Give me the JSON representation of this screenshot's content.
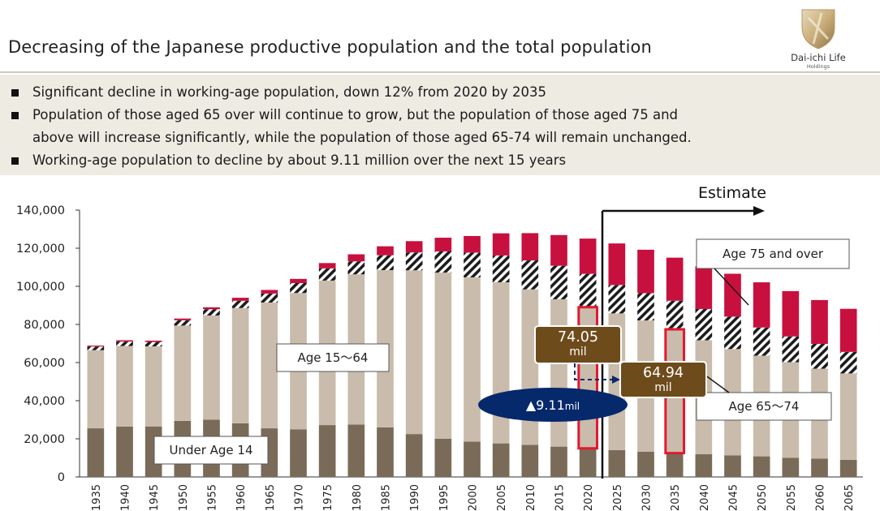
{
  "header": {
    "title": "Decreasing of the Japanese productive population and the  total population",
    "logo_name": "Dai-ichi Life",
    "logo_sub": "Holdings"
  },
  "bullets": [
    {
      "lines": [
        "Significant decline in working-age population, down 12% from 2020 by 2035"
      ]
    },
    {
      "lines": [
        "Population of those aged 65 over will continue to grow, but the population of those aged 75 and",
        "above will increase significantly, while the population of those aged 65-74 will remain unchanged."
      ]
    },
    {
      "lines": [
        "Working-age population to decline by about 9.11 million over the next 15 years"
      ]
    }
  ],
  "colors": {
    "under14": "#7a6b59",
    "age15_64": "#c9bcac",
    "age65_74": "#1c1c1c",
    "age75plus": "#c8103e",
    "callout_box": "#6e4b1b",
    "oval": "#06296b",
    "highlight": "#e4182e",
    "band": "#eeebe3"
  },
  "chart_data": {
    "type": "bar",
    "stacked": true,
    "categories": [
      "1935",
      "1940",
      "1945",
      "1950",
      "1955",
      "1960",
      "1965",
      "1970",
      "1975",
      "1980",
      "1985",
      "1990",
      "1995",
      "2000",
      "2005",
      "2010",
      "2015",
      "2020",
      "2025",
      "2030",
      "2035",
      "2040",
      "2045",
      "2050",
      "2055",
      "2060",
      "2065"
    ],
    "series": [
      {
        "name": "Under Age 14",
        "values": [
          25500,
          26400,
          26500,
          29400,
          30000,
          28100,
          25500,
          25000,
          27200,
          27500,
          26000,
          22500,
          20000,
          18500,
          17600,
          16800,
          15900,
          15000,
          14100,
          13200,
          12500,
          11900,
          11300,
          10800,
          10000,
          9600,
          9000
        ]
      },
      {
        "name": "Age 15〜64",
        "values": [
          41000,
          42300,
          42000,
          50000,
          54700,
          60500,
          66000,
          71500,
          75800,
          78800,
          82500,
          85900,
          87200,
          86200,
          84500,
          81600,
          77300,
          74050,
          71700,
          68900,
          64940,
          59800,
          55800,
          52800,
          50200,
          47200,
          45300
        ]
      },
      {
        "name": "Age 65〜74",
        "values": [
          1900,
          2300,
          2300,
          2800,
          3300,
          3800,
          4700,
          5200,
          6400,
          6800,
          7800,
          9400,
          11100,
          13000,
          14100,
          15200,
          17600,
          17500,
          14900,
          14300,
          15000,
          16400,
          17000,
          14800,
          13500,
          13000,
          11300
        ]
      },
      {
        "name": "Age 75 and over",
        "values": [
          500,
          700,
          700,
          900,
          1000,
          1600,
          1900,
          2200,
          2800,
          3700,
          4700,
          5900,
          7200,
          8700,
          11600,
          14300,
          16100,
          18500,
          21800,
          22800,
          22600,
          22400,
          22500,
          23700,
          23800,
          23000,
          22600
        ]
      }
    ],
    "ylim": [
      0,
      140000
    ],
    "yticks": [
      "0",
      "20,000",
      "40,000",
      "60,000",
      "80,000",
      "100,000",
      "120,000",
      "140,000"
    ],
    "grid": false,
    "estimate_from": "2025",
    "annotations": {
      "estimate": "Estimate",
      "label_75": "Age 75 and over",
      "label_15_64": "Age 15〜64",
      "label_65_74": "Age 65〜74",
      "label_u14": "Under Age 14",
      "callout_2020": {
        "value": "74.05",
        "unit": "mil"
      },
      "callout_2035": {
        "value": "64.94",
        "unit": "mil"
      },
      "decline": {
        "prefix": "▲",
        "value": "9.11",
        "unit": "mil"
      }
    }
  }
}
